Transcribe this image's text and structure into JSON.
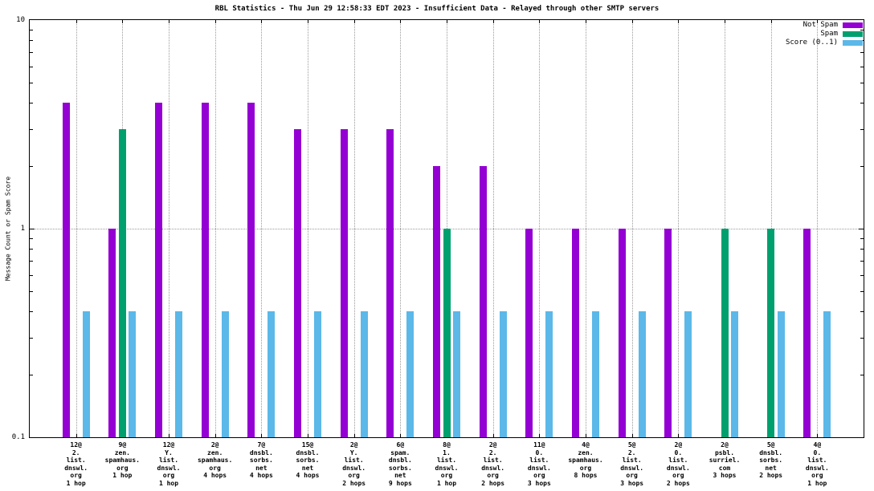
{
  "title": "RBL Statistics - Thu Jun 29 12:58:33 EDT 2023 - Insufficient Data - Relayed through other SMTP servers",
  "y_axis_label": "Message Count or Spam Score",
  "axis": {
    "y_ticks": [
      {
        "label": "10",
        "value": 10
      },
      {
        "label": "1",
        "value": 1
      },
      {
        "label": "0.1",
        "value": 0.1
      }
    ]
  },
  "legend": {
    "items": [
      {
        "label": "Not Spam",
        "color": "#9400d3"
      },
      {
        "label": "Spam",
        "color": "#00a06e"
      },
      {
        "label": "Score (0..1)",
        "color": "#5bb8e8"
      }
    ]
  },
  "chart_data": {
    "type": "bar",
    "title": "RBL Statistics - Thu Jun 29 12:58:33 EDT 2023 - Insufficient Data - Relayed through other SMTP servers",
    "ylabel": "Message Count or Spam Score",
    "y_scale": "log",
    "ylim": [
      0.1,
      10
    ],
    "grid": true,
    "legend_position": "top-right",
    "categories": [
      [
        "12@",
        "2.",
        "list.",
        "dnswl.",
        "org",
        "1 hop"
      ],
      [
        "9@",
        "zen.",
        "spamhaus.",
        "org",
        "1 hop"
      ],
      [
        "12@",
        "Y.",
        "list.",
        "dnswl.",
        "org",
        "1 hop"
      ],
      [
        "2@",
        "zen.",
        "spamhaus.",
        "org",
        "4 hops"
      ],
      [
        "7@",
        "dnsbl.",
        "sorbs.",
        "net",
        "4 hops"
      ],
      [
        "15@",
        "dnsbl.",
        "sorbs.",
        "net",
        "4 hops"
      ],
      [
        "2@",
        "Y.",
        "list.",
        "dnswl.",
        "org",
        "2 hops"
      ],
      [
        "6@",
        "spam.",
        "dnsbl.",
        "sorbs.",
        "net",
        "9 hops"
      ],
      [
        "8@",
        "1.",
        "list.",
        "dnswl.",
        "org",
        "1 hop"
      ],
      [
        "2@",
        "2.",
        "list.",
        "dnswl.",
        "org",
        "2 hops"
      ],
      [
        "11@",
        "0.",
        "list.",
        "dnswl.",
        "org",
        "3 hops"
      ],
      [
        "4@",
        "zen.",
        "spamhaus.",
        "org",
        "8 hops"
      ],
      [
        "5@",
        "2.",
        "list.",
        "dnswl.",
        "org",
        "3 hops"
      ],
      [
        "2@",
        "0.",
        "list.",
        "dnswl.",
        "org",
        "2 hops"
      ],
      [
        "2@",
        "psbl.",
        "surriel.",
        "com",
        "3 hops"
      ],
      [
        "5@",
        "dnsbl.",
        "sorbs.",
        "net",
        "2 hops"
      ],
      [
        "4@",
        "0.",
        "list.",
        "dnswl.",
        "org",
        "1 hop"
      ]
    ],
    "series": [
      {
        "name": "Not Spam",
        "color": "#9400d3",
        "values": [
          4,
          1,
          4,
          4,
          4,
          3,
          3,
          3,
          2,
          2,
          1,
          1,
          1,
          1,
          0,
          0,
          1
        ]
      },
      {
        "name": "Spam",
        "color": "#00a06e",
        "values": [
          0,
          3,
          0,
          0,
          0,
          0,
          0,
          0,
          1,
          0,
          0,
          0,
          0,
          0,
          1,
          1,
          0
        ]
      },
      {
        "name": "Score (0..1)",
        "color": "#5bb8e8",
        "values": [
          0.4,
          0.4,
          0.4,
          0.4,
          0.4,
          0.4,
          0.4,
          0.4,
          0.4,
          0.4,
          0.4,
          0.4,
          0.4,
          0.4,
          0.4,
          0.4,
          0.4
        ]
      }
    ]
  }
}
